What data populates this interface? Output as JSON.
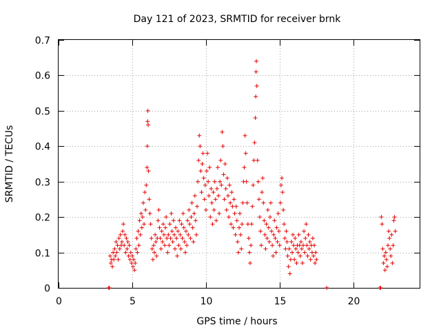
{
  "chart_data": {
    "type": "scatter",
    "title": "Day 121 of 2023, SRMTID for receiver brnk",
    "xlabel": "GPS time / hours",
    "ylabel": "SRMTID / TECUs",
    "xlim": [
      0,
      24.5
    ],
    "ylim": [
      0,
      0.7
    ],
    "x_ticks": [
      0,
      5,
      10,
      15,
      20
    ],
    "x_tick_labels": [
      "0",
      "5",
      "10",
      "15",
      "20"
    ],
    "y_ticks": [
      0,
      0.1,
      0.2,
      0.3,
      0.4,
      0.5,
      0.6,
      0.7
    ],
    "y_tick_labels": [
      "0",
      "0.1",
      "0.2",
      "0.3",
      "0.4",
      "0.5",
      "0.6",
      "0.7"
    ],
    "grid": true,
    "marker": "plus",
    "color": "#e60000",
    "series": [
      {
        "name": "SRMTID",
        "points": [
          [
            3.4,
            0.0
          ],
          [
            3.45,
            0.0
          ],
          [
            3.5,
            0.09
          ],
          [
            3.55,
            0.07
          ],
          [
            3.6,
            0.08
          ],
          [
            3.65,
            0.06
          ],
          [
            3.7,
            0.1
          ],
          [
            3.75,
            0.08
          ],
          [
            3.8,
            0.11
          ],
          [
            3.85,
            0.09
          ],
          [
            3.9,
            0.13
          ],
          [
            3.95,
            0.1
          ],
          [
            4.0,
            0.12
          ],
          [
            4.05,
            0.08
          ],
          [
            4.1,
            0.14
          ],
          [
            4.15,
            0.11
          ],
          [
            4.2,
            0.15
          ],
          [
            4.25,
            0.12
          ],
          [
            4.3,
            0.13
          ],
          [
            4.35,
            0.16
          ],
          [
            4.4,
            0.18
          ],
          [
            4.45,
            0.12
          ],
          [
            4.5,
            0.15
          ],
          [
            4.55,
            0.1
          ],
          [
            4.6,
            0.14
          ],
          [
            4.65,
            0.11
          ],
          [
            4.7,
            0.13
          ],
          [
            4.75,
            0.09
          ],
          [
            4.8,
            0.12
          ],
          [
            4.85,
            0.08
          ],
          [
            4.9,
            0.1
          ],
          [
            4.95,
            0.07
          ],
          [
            5.0,
            0.09
          ],
          [
            5.05,
            0.06
          ],
          [
            5.1,
            0.08
          ],
          [
            5.15,
            0.05
          ],
          [
            5.2,
            0.07
          ],
          [
            5.25,
            0.11
          ],
          [
            5.3,
            0.14
          ],
          [
            5.35,
            0.1
          ],
          [
            5.4,
            0.16
          ],
          [
            5.45,
            0.12
          ],
          [
            5.5,
            0.19
          ],
          [
            5.55,
            0.15
          ],
          [
            5.6,
            0.21
          ],
          [
            5.65,
            0.17
          ],
          [
            5.7,
            0.2
          ],
          [
            5.75,
            0.24
          ],
          [
            5.8,
            0.18
          ],
          [
            5.85,
            0.27
          ],
          [
            5.9,
            0.22
          ],
          [
            5.95,
            0.29
          ],
          [
            6.0,
            0.34
          ],
          [
            6.02,
            0.4
          ],
          [
            6.04,
            0.47
          ],
          [
            6.06,
            0.5
          ],
          [
            6.08,
            0.46
          ],
          [
            6.1,
            0.33
          ],
          [
            6.15,
            0.25
          ],
          [
            6.2,
            0.21
          ],
          [
            6.25,
            0.18
          ],
          [
            6.3,
            0.14
          ],
          [
            6.35,
            0.11
          ],
          [
            6.4,
            0.08
          ],
          [
            6.45,
            0.12
          ],
          [
            6.5,
            0.1
          ],
          [
            6.55,
            0.15
          ],
          [
            6.6,
            0.13
          ],
          [
            6.65,
            0.09
          ],
          [
            6.7,
            0.14
          ],
          [
            6.75,
            0.19
          ],
          [
            6.8,
            0.22
          ],
          [
            6.85,
            0.17
          ],
          [
            6.9,
            0.14
          ],
          [
            6.95,
            0.11
          ],
          [
            7.0,
            0.16
          ],
          [
            7.05,
            0.13
          ],
          [
            7.1,
            0.18
          ],
          [
            7.15,
            0.15
          ],
          [
            7.2,
            0.12
          ],
          [
            7.25,
            0.17
          ],
          [
            7.3,
            0.2
          ],
          [
            7.35,
            0.14
          ],
          [
            7.4,
            0.1
          ],
          [
            7.45,
            0.15
          ],
          [
            7.5,
            0.12
          ],
          [
            7.55,
            0.18
          ],
          [
            7.6,
            0.14
          ],
          [
            7.65,
            0.21
          ],
          [
            7.7,
            0.16
          ],
          [
            7.75,
            0.13
          ],
          [
            7.8,
            0.19
          ],
          [
            7.85,
            0.15
          ],
          [
            7.9,
            0.11
          ],
          [
            7.95,
            0.17
          ],
          [
            8.0,
            0.14
          ],
          [
            8.05,
            0.09
          ],
          [
            8.1,
            0.16
          ],
          [
            8.15,
            0.12
          ],
          [
            8.2,
            0.19
          ],
          [
            8.25,
            0.15
          ],
          [
            8.3,
            0.11
          ],
          [
            8.35,
            0.18
          ],
          [
            8.4,
            0.14
          ],
          [
            8.45,
            0.21
          ],
          [
            8.5,
            0.17
          ],
          [
            8.55,
            0.13
          ],
          [
            8.6,
            0.1
          ],
          [
            8.65,
            0.16
          ],
          [
            8.7,
            0.12
          ],
          [
            8.75,
            0.19
          ],
          [
            8.8,
            0.15
          ],
          [
            8.85,
            0.22
          ],
          [
            8.9,
            0.18
          ],
          [
            8.95,
            0.14
          ],
          [
            9.0,
            0.2
          ],
          [
            9.05,
            0.24
          ],
          [
            9.1,
            0.17
          ],
          [
            9.15,
            0.13
          ],
          [
            9.2,
            0.21
          ],
          [
            9.25,
            0.26
          ],
          [
            9.3,
            0.19
          ],
          [
            9.35,
            0.15
          ],
          [
            9.4,
            0.23
          ],
          [
            9.45,
            0.3
          ],
          [
            9.5,
            0.36
          ],
          [
            9.55,
            0.43
          ],
          [
            9.6,
            0.4
          ],
          [
            9.65,
            0.33
          ],
          [
            9.7,
            0.27
          ],
          [
            9.75,
            0.35
          ],
          [
            9.8,
            0.38
          ],
          [
            9.85,
            0.31
          ],
          [
            9.9,
            0.25
          ],
          [
            9.95,
            0.29
          ],
          [
            10.0,
            0.22
          ],
          [
            10.05,
            0.33
          ],
          [
            10.1,
            0.38
          ],
          [
            10.15,
            0.3
          ],
          [
            10.2,
            0.26
          ],
          [
            10.25,
            0.34
          ],
          [
            10.3,
            0.2
          ],
          [
            10.35,
            0.28
          ],
          [
            10.4,
            0.24
          ],
          [
            10.45,
            0.18
          ],
          [
            10.5,
            0.27
          ],
          [
            10.55,
            0.22
          ],
          [
            10.6,
            0.3
          ],
          [
            10.65,
            0.25
          ],
          [
            10.7,
            0.19
          ],
          [
            10.75,
            0.28
          ],
          [
            10.8,
            0.34
          ],
          [
            10.85,
            0.26
          ],
          [
            10.9,
            0.21
          ],
          [
            10.95,
            0.3
          ],
          [
            11.0,
            0.36
          ],
          [
            11.05,
            0.29
          ],
          [
            11.1,
            0.44
          ],
          [
            11.15,
            0.4
          ],
          [
            11.2,
            0.32
          ],
          [
            11.25,
            0.25
          ],
          [
            11.3,
            0.35
          ],
          [
            11.35,
            0.28
          ],
          [
            11.4,
            0.22
          ],
          [
            11.45,
            0.31
          ],
          [
            11.5,
            0.26
          ],
          [
            11.55,
            0.2
          ],
          [
            11.6,
            0.29
          ],
          [
            11.65,
            0.24
          ],
          [
            11.7,
            0.18
          ],
          [
            11.75,
            0.27
          ],
          [
            11.8,
            0.23
          ],
          [
            11.85,
            0.17
          ],
          [
            11.9,
            0.25
          ],
          [
            11.95,
            0.21
          ],
          [
            12.0,
            0.15
          ],
          [
            12.05,
            0.23
          ],
          [
            12.1,
            0.19
          ],
          [
            12.15,
            0.13
          ],
          [
            12.2,
            0.1
          ],
          [
            12.25,
            0.17
          ],
          [
            12.3,
            0.21
          ],
          [
            12.35,
            0.15
          ],
          [
            12.4,
            0.11
          ],
          [
            12.45,
            0.18
          ],
          [
            12.5,
            0.24
          ],
          [
            12.55,
            0.3
          ],
          [
            12.6,
            0.34
          ],
          [
            12.65,
            0.43
          ],
          [
            12.7,
            0.38
          ],
          [
            12.75,
            0.3
          ],
          [
            12.8,
            0.24
          ],
          [
            12.85,
            0.18
          ],
          [
            12.9,
            0.14
          ],
          [
            12.95,
            0.1
          ],
          [
            13.0,
            0.07
          ],
          [
            13.05,
            0.12
          ],
          [
            13.1,
            0.18
          ],
          [
            13.15,
            0.23
          ],
          [
            13.2,
            0.29
          ],
          [
            13.25,
            0.36
          ],
          [
            13.3,
            0.41
          ],
          [
            13.35,
            0.48
          ],
          [
            13.38,
            0.54
          ],
          [
            13.4,
            0.61
          ],
          [
            13.42,
            0.64
          ],
          [
            13.45,
            0.57
          ],
          [
            13.5,
            0.36
          ],
          [
            13.55,
            0.3
          ],
          [
            13.6,
            0.25
          ],
          [
            13.65,
            0.2
          ],
          [
            13.7,
            0.16
          ],
          [
            13.75,
            0.12
          ],
          [
            13.8,
            0.27
          ],
          [
            13.85,
            0.31
          ],
          [
            13.9,
            0.24
          ],
          [
            13.95,
            0.19
          ],
          [
            14.0,
            0.15
          ],
          [
            14.05,
            0.11
          ],
          [
            14.1,
            0.18
          ],
          [
            14.15,
            0.14
          ],
          [
            14.2,
            0.22
          ],
          [
            14.25,
            0.17
          ],
          [
            14.3,
            0.13
          ],
          [
            14.35,
            0.2
          ],
          [
            14.4,
            0.24
          ],
          [
            14.45,
            0.16
          ],
          [
            14.5,
            0.12
          ],
          [
            14.55,
            0.09
          ],
          [
            14.6,
            0.15
          ],
          [
            14.65,
            0.19
          ],
          [
            14.7,
            0.14
          ],
          [
            14.75,
            0.1
          ],
          [
            14.8,
            0.17
          ],
          [
            14.85,
            0.13
          ],
          [
            14.9,
            0.21
          ],
          [
            14.95,
            0.16
          ],
          [
            15.0,
            0.12
          ],
          [
            15.05,
            0.24
          ],
          [
            15.1,
            0.29
          ],
          [
            15.15,
            0.31
          ],
          [
            15.2,
            0.27
          ],
          [
            15.25,
            0.22
          ],
          [
            15.3,
            0.18
          ],
          [
            15.35,
            0.14
          ],
          [
            15.4,
            0.11
          ],
          [
            15.45,
            0.16
          ],
          [
            15.5,
            0.13
          ],
          [
            15.55,
            0.09
          ],
          [
            15.6,
            0.06
          ],
          [
            15.65,
            0.11
          ],
          [
            15.7,
            0.04
          ],
          [
            15.75,
            0.08
          ],
          [
            15.8,
            0.13
          ],
          [
            15.85,
            0.1
          ],
          [
            15.9,
            0.15
          ],
          [
            15.95,
            0.12
          ],
          [
            16.0,
            0.08
          ],
          [
            16.05,
            0.14
          ],
          [
            16.1,
            0.11
          ],
          [
            16.15,
            0.07
          ],
          [
            16.2,
            0.12
          ],
          [
            16.25,
            0.1
          ],
          [
            16.3,
            0.15
          ],
          [
            16.35,
            0.12
          ],
          [
            16.4,
            0.09
          ],
          [
            16.45,
            0.13
          ],
          [
            16.5,
            0.11
          ],
          [
            16.55,
            0.07
          ],
          [
            16.6,
            0.12
          ],
          [
            16.65,
            0.16
          ],
          [
            16.7,
            0.1
          ],
          [
            16.75,
            0.14
          ],
          [
            16.8,
            0.18
          ],
          [
            16.85,
            0.12
          ],
          [
            16.9,
            0.09
          ],
          [
            16.95,
            0.15
          ],
          [
            17.0,
            0.11
          ],
          [
            17.05,
            0.13
          ],
          [
            17.1,
            0.08
          ],
          [
            17.15,
            0.12
          ],
          [
            17.2,
            0.1
          ],
          [
            17.25,
            0.14
          ],
          [
            17.3,
            0.09
          ],
          [
            17.35,
            0.12
          ],
          [
            17.4,
            0.07
          ],
          [
            17.45,
            0.1
          ],
          [
            17.5,
            0.08
          ],
          [
            18.2,
            0.0
          ],
          [
            21.8,
            0.0
          ],
          [
            21.85,
            0.0
          ],
          [
            21.9,
            0.2
          ],
          [
            21.95,
            0.18
          ],
          [
            22.0,
            0.11
          ],
          [
            22.05,
            0.07
          ],
          [
            22.1,
            0.09
          ],
          [
            22.15,
            0.05
          ],
          [
            22.2,
            0.1
          ],
          [
            22.25,
            0.08
          ],
          [
            22.3,
            0.06
          ],
          [
            22.35,
            0.12
          ],
          [
            22.4,
            0.16
          ],
          [
            22.45,
            0.14
          ],
          [
            22.5,
            0.11
          ],
          [
            22.55,
            0.09
          ],
          [
            22.6,
            0.15
          ],
          [
            22.65,
            0.07
          ],
          [
            22.7,
            0.12
          ],
          [
            22.75,
            0.19
          ],
          [
            22.8,
            0.2
          ],
          [
            22.85,
            0.16
          ]
        ]
      }
    ]
  }
}
